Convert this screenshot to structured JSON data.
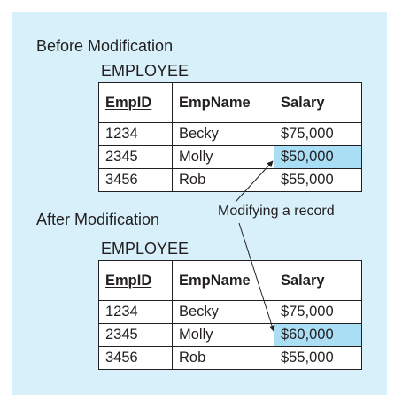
{
  "before": {
    "heading": "Before Modification",
    "table_name": "EMPLOYEE",
    "columns": [
      "EmpID",
      "EmpName",
      "Salary"
    ],
    "rows": [
      [
        "1234",
        "Becky",
        "$75,000"
      ],
      [
        "2345",
        "Molly",
        "$50,000"
      ],
      [
        "3456",
        "Rob",
        "$55,000"
      ]
    ]
  },
  "after": {
    "heading": "After Modification",
    "table_name": "EMPLOYEE",
    "columns": [
      "EmpID",
      "EmpName",
      "Salary"
    ],
    "rows": [
      [
        "1234",
        "Becky",
        "$75,000"
      ],
      [
        "2345",
        "Molly",
        "$60,000"
      ],
      [
        "3456",
        "Rob",
        "$55,000"
      ]
    ]
  },
  "annotation": "Modifying a record",
  "colors": {
    "panel_background": "#d7f0f9",
    "highlight": "#a9def5",
    "border": "#231f20"
  }
}
